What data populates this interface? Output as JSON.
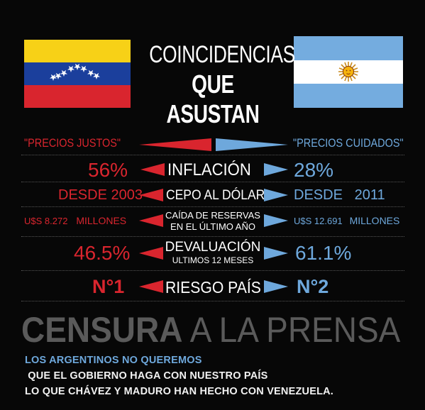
{
  "header": {
    "title_line1": "COINCIDENCIAS",
    "title_line2": "QUE ASUSTAN",
    "flag_left": "venezuela-flag",
    "flag_right": "argentina-flag"
  },
  "colors": {
    "venezuela": "#d9252e",
    "argentina": "#6ea8dc",
    "text": "#ffffff",
    "headline": "#5a5a5a"
  },
  "comparison": {
    "rows": [
      {
        "left": "\"PRECIOS JUSTOS\"",
        "center": "",
        "right": "\"PRECIOS CUIDADOS\""
      },
      {
        "left": "56%",
        "center": "INFLACIÓN",
        "right": "28%"
      },
      {
        "left": "DESDE 2003",
        "center": "CEPO AL DÓLAR",
        "right": "DESDE   2011"
      },
      {
        "left": "U$S 8.272",
        "left_suffix": "MILLONES",
        "center": "CAÍDA DE RESERVAS",
        "center_sub": "EN EL ÚLTIMO AÑO",
        "right": "U$S 12.691",
        "right_suffix": "MILLONES"
      },
      {
        "left": "46.5%",
        "center": "DEVALUACIÓN",
        "center_sub": "ULTIMOS 12 MESES",
        "right": "61.1%"
      },
      {
        "left": "N°1",
        "center": "RIESGO PAÍS",
        "right": "N°2"
      }
    ]
  },
  "headline": {
    "word1": "CENSURA",
    "word2": " A LA PRENSA"
  },
  "footer": {
    "highlight": "LOS ARGENTINOS NO QUEREMOS",
    "rest_line1": " QUE EL GOBIERNO HAGA CON NUESTRO PAÍS",
    "line2": "LO QUE CHÁVEZ Y MADURO HAN HECHO CON VENEZUELA."
  }
}
